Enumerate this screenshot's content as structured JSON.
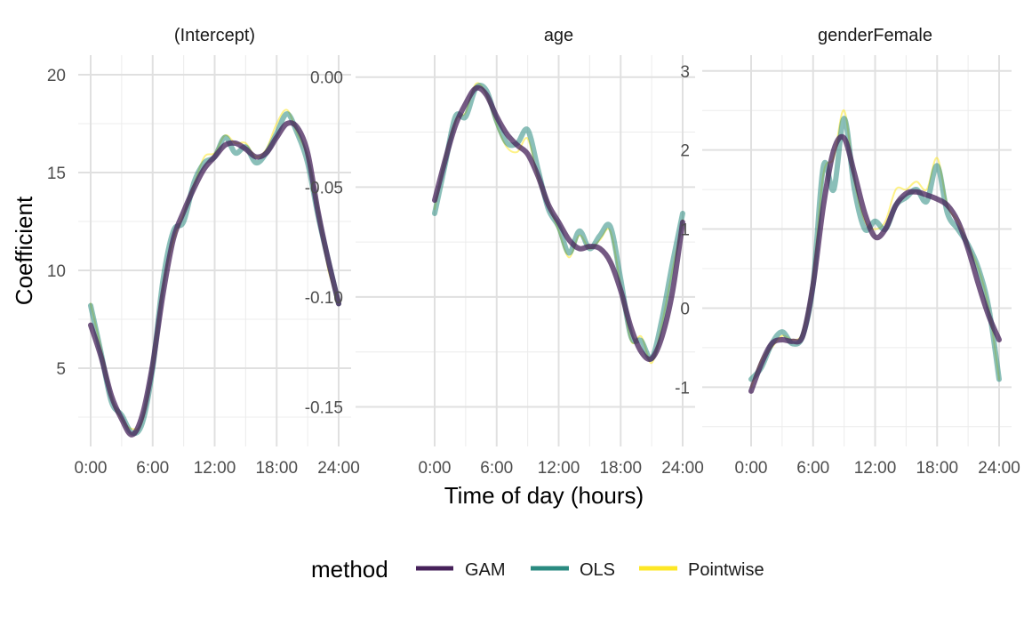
{
  "figure": {
    "ylabel": "Coefficient",
    "xlabel": "Time of day (hours)",
    "legend": {
      "title": "method",
      "position": "bottom",
      "items": [
        {
          "label": "GAM",
          "color": "#46215a"
        },
        {
          "label": "OLS",
          "color": "#2a8a80"
        },
        {
          "label": "Pointwise",
          "color": "#fde725"
        }
      ]
    }
  },
  "chart_data": [
    {
      "type": "line",
      "title": "(Intercept)",
      "x_ticks": [
        "0:00",
        "6:00",
        "12:00",
        "18:00",
        "24:00"
      ],
      "y_ticks": [
        "5",
        "10",
        "15",
        "20"
      ],
      "xlim": [
        0,
        24
      ],
      "ylim": [
        1,
        21
      ],
      "grid": true,
      "series": [
        {
          "name": "GAM",
          "x": [
            0,
            1,
            2,
            3,
            4,
            5,
            6,
            7,
            8,
            9,
            10,
            11,
            12,
            13,
            14,
            15,
            16,
            17,
            18,
            19,
            20,
            21,
            22,
            23,
            24
          ],
          "y": [
            7.2,
            5.6,
            3.6,
            2.4,
            1.6,
            2.6,
            5.2,
            8.8,
            11.6,
            13.0,
            14.2,
            15.2,
            15.8,
            16.4,
            16.5,
            16.2,
            15.8,
            16.0,
            16.8,
            17.5,
            17.3,
            16.0,
            13.0,
            10.5,
            8.3
          ]
        },
        {
          "name": "OLS",
          "x": [
            0,
            1,
            2,
            3,
            4,
            5,
            6,
            7,
            8,
            9,
            10,
            11,
            12,
            13,
            14,
            15,
            16,
            17,
            18,
            19,
            20,
            21,
            22,
            23,
            24
          ],
          "y": [
            8.2,
            5.8,
            3.3,
            2.6,
            1.7,
            2.2,
            5.0,
            9.5,
            12.0,
            12.5,
            14.5,
            15.5,
            15.8,
            16.8,
            16.0,
            16.3,
            15.5,
            16.0,
            17.0,
            18.0,
            17.0,
            15.5,
            12.8,
            10.5,
            8.3
          ]
        },
        {
          "name": "Pointwise",
          "x": [
            0,
            1,
            2,
            3,
            4,
            5,
            6,
            7,
            8,
            9,
            10,
            11,
            12,
            13,
            14,
            15,
            16,
            17,
            18,
            19,
            20,
            21,
            22,
            23,
            24
          ],
          "y": [
            8.3,
            6.0,
            3.5,
            2.4,
            1.9,
            2.3,
            5.2,
            9.2,
            11.5,
            12.9,
            14.4,
            15.8,
            16.0,
            16.9,
            16.5,
            16.5,
            15.8,
            16.2,
            17.5,
            18.2,
            17.0,
            15.8,
            13.2,
            10.0,
            8.5
          ]
        }
      ]
    },
    {
      "type": "line",
      "title": "age",
      "x_ticks": [
        "0:00",
        "6:00",
        "12:00",
        "18:00",
        "24:00"
      ],
      "y_ticks": [
        "0.00",
        "-0.05",
        "-0.10",
        "-0.15"
      ],
      "xlim": [
        0,
        24
      ],
      "ylim": [
        -0.168,
        0.01
      ],
      "grid": true,
      "series": [
        {
          "name": "GAM",
          "x": [
            0,
            1,
            2,
            3,
            4,
            5,
            6,
            7,
            8,
            9,
            10,
            11,
            12,
            13,
            14,
            15,
            16,
            17,
            18,
            19,
            20,
            21,
            22,
            23,
            24
          ],
          "y": [
            -0.056,
            -0.038,
            -0.022,
            -0.012,
            -0.005,
            -0.008,
            -0.018,
            -0.026,
            -0.031,
            -0.035,
            -0.045,
            -0.058,
            -0.066,
            -0.074,
            -0.078,
            -0.077,
            -0.078,
            -0.084,
            -0.097,
            -0.114,
            -0.125,
            -0.128,
            -0.118,
            -0.098,
            -0.066
          ]
        },
        {
          "name": "OLS",
          "x": [
            0,
            1,
            2,
            3,
            4,
            5,
            6,
            7,
            8,
            9,
            10,
            11,
            12,
            13,
            14,
            15,
            16,
            17,
            18,
            19,
            20,
            21,
            22,
            23,
            24
          ],
          "y": [
            -0.062,
            -0.04,
            -0.018,
            -0.018,
            -0.005,
            -0.006,
            -0.02,
            -0.03,
            -0.03,
            -0.024,
            -0.042,
            -0.06,
            -0.068,
            -0.08,
            -0.07,
            -0.078,
            -0.072,
            -0.068,
            -0.092,
            -0.118,
            -0.12,
            -0.128,
            -0.11,
            -0.085,
            -0.062
          ]
        },
        {
          "name": "Pointwise",
          "x": [
            0,
            1,
            2,
            3,
            4,
            5,
            6,
            7,
            8,
            9,
            10,
            11,
            12,
            13,
            14,
            15,
            16,
            17,
            18,
            19,
            20,
            21,
            22,
            23,
            24
          ],
          "y": [
            -0.06,
            -0.037,
            -0.02,
            -0.016,
            -0.003,
            -0.008,
            -0.022,
            -0.032,
            -0.034,
            -0.028,
            -0.046,
            -0.058,
            -0.07,
            -0.082,
            -0.072,
            -0.078,
            -0.074,
            -0.07,
            -0.095,
            -0.12,
            -0.118,
            -0.13,
            -0.112,
            -0.088,
            -0.065
          ]
        }
      ]
    },
    {
      "type": "line",
      "title": "genderFemale",
      "x_ticks": [
        "0:00",
        "6:00",
        "12:00",
        "18:00",
        "24:00"
      ],
      "y_ticks": [
        "3",
        "2",
        "1",
        "0",
        "-1"
      ],
      "xlim": [
        0,
        24
      ],
      "ylim": [
        -1.75,
        3.2
      ],
      "grid": true,
      "series": [
        {
          "name": "GAM",
          "x": [
            0,
            1,
            2,
            3,
            4,
            5,
            6,
            7,
            8,
            9,
            10,
            11,
            12,
            13,
            14,
            15,
            16,
            17,
            18,
            19,
            20,
            21,
            22,
            23,
            24
          ],
          "y": [
            -1.05,
            -0.7,
            -0.45,
            -0.4,
            -0.42,
            -0.35,
            0.3,
            1.3,
            2.0,
            2.15,
            1.7,
            1.2,
            0.9,
            1.0,
            1.3,
            1.45,
            1.47,
            1.43,
            1.38,
            1.3,
            1.1,
            0.75,
            0.3,
            -0.1,
            -0.4
          ]
        },
        {
          "name": "OLS",
          "x": [
            0,
            1,
            2,
            3,
            4,
            5,
            6,
            7,
            8,
            9,
            10,
            11,
            12,
            13,
            14,
            15,
            16,
            17,
            18,
            19,
            20,
            21,
            22,
            23,
            24
          ],
          "y": [
            -0.9,
            -0.75,
            -0.45,
            -0.3,
            -0.45,
            -0.35,
            0.3,
            1.8,
            1.5,
            2.4,
            1.5,
            1.0,
            1.1,
            1.0,
            1.3,
            1.4,
            1.5,
            1.35,
            1.8,
            1.2,
            1.0,
            0.8,
            0.5,
            0.0,
            -0.9
          ]
        },
        {
          "name": "Pointwise",
          "x": [
            0,
            1,
            2,
            3,
            4,
            5,
            6,
            7,
            8,
            9,
            10,
            11,
            12,
            13,
            14,
            15,
            16,
            17,
            18,
            19,
            20,
            21,
            22,
            23,
            24
          ],
          "y": [
            -1.0,
            -0.65,
            -0.5,
            -0.35,
            -0.4,
            -0.3,
            0.4,
            1.7,
            1.9,
            2.5,
            1.6,
            1.1,
            1.0,
            1.1,
            1.5,
            1.5,
            1.6,
            1.5,
            1.9,
            1.3,
            1.1,
            0.8,
            0.5,
            0.0,
            -0.9
          ]
        }
      ]
    }
  ]
}
